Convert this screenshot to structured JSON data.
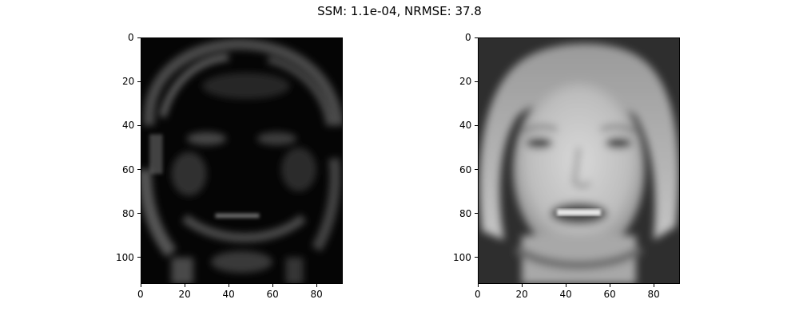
{
  "figure": {
    "title": "SSM: 1.1e-04, NRMSE: 37.8"
  },
  "panels": [
    {
      "id": "left",
      "image": "reconstruction-residual-face",
      "x_ticks": [
        "0",
        "20",
        "40",
        "60",
        "80"
      ],
      "y_ticks": [
        "0",
        "20",
        "40",
        "60",
        "80",
        "100"
      ],
      "x_range": [
        0,
        92
      ],
      "y_range": [
        0,
        112
      ]
    },
    {
      "id": "right",
      "image": "original-grayscale-face",
      "x_ticks": [
        "0",
        "20",
        "40",
        "60",
        "80"
      ],
      "y_ticks": [
        "0",
        "20",
        "40",
        "60",
        "80",
        "100"
      ],
      "x_range": [
        0,
        92
      ],
      "y_range": [
        0,
        112
      ]
    }
  ],
  "colors": {
    "left_background": "#050505",
    "right_background": "#2e2e2e"
  }
}
